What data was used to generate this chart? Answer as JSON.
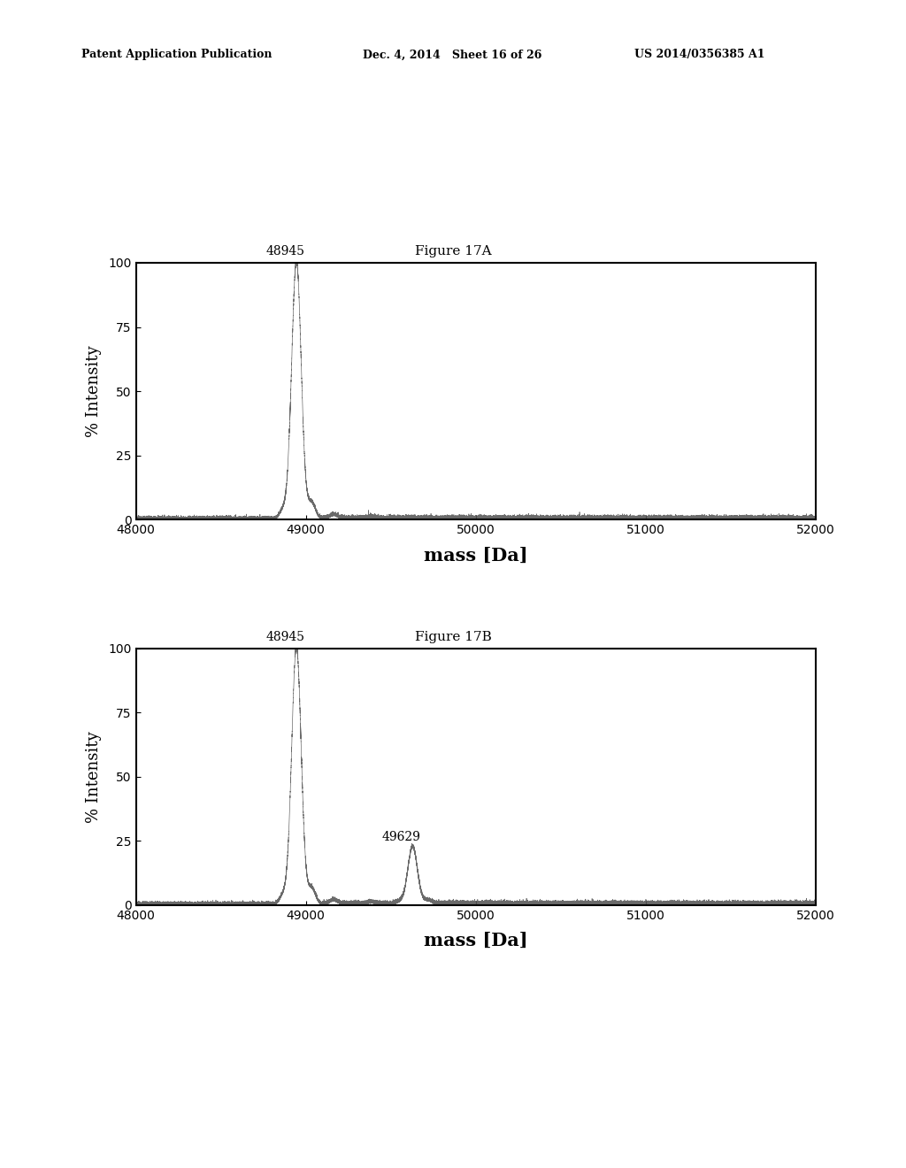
{
  "header_left": "Patent Application Publication",
  "header_mid": "Dec. 4, 2014   Sheet 16 of 26",
  "header_right": "US 2014/0356385 A1",
  "fig_label_A": "Figure 17A",
  "fig_label_B": "Figure 17B",
  "xlabel": "mass [Da]",
  "ylabel": "% Intensity",
  "xlim": [
    48000,
    52000
  ],
  "ylim": [
    0,
    100
  ],
  "xticks": [
    48000,
    49000,
    50000,
    51000,
    52000
  ],
  "yticks": [
    0,
    25,
    50,
    75,
    100
  ],
  "peaks_A": [
    {
      "mass": 48945,
      "intensity": 100,
      "label": "48945"
    }
  ],
  "peaks_B": [
    {
      "mass": 48945,
      "intensity": 100,
      "label": "48945"
    },
    {
      "mass": 49629,
      "intensity": 22,
      "label": "49629"
    }
  ],
  "noise_amplitude": 2.0,
  "line_color": "#555555",
  "axis_color": "#000000",
  "background_color": "#ffffff",
  "title_fontsize": 11,
  "label_fontsize": 13,
  "tick_fontsize": 10,
  "header_fontsize": 9
}
